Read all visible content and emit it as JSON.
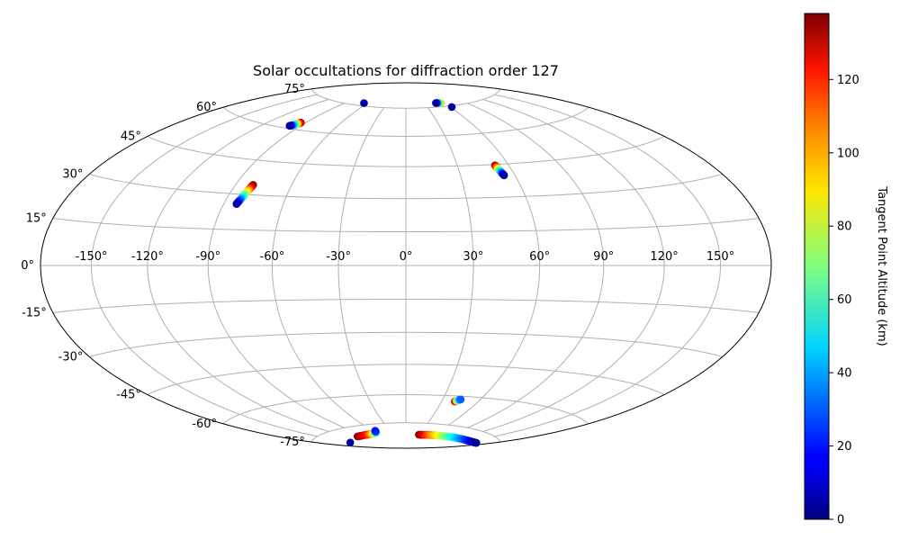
{
  "chart_data": {
    "type": "scatter",
    "projection": "hammer",
    "title": "Solar occultations for diffraction order 127",
    "colorbar": {
      "label": "Tangent Point Altitude (km)",
      "colormap": "jet",
      "range": [
        0,
        138
      ],
      "ticks": [
        "0",
        "20",
        "40",
        "60",
        "80",
        "100",
        "120"
      ]
    },
    "lon_ticks": [
      "-150°",
      "-120°",
      "-90°",
      "-60°",
      "-30°",
      "0°",
      "30°",
      "60°",
      "90°",
      "120°",
      "150°"
    ],
    "lat_ticks": [
      "-75°",
      "-60°",
      "-45°",
      "-30°",
      "-15°",
      "0°",
      "15°",
      "30°",
      "45°",
      "60°",
      "75°"
    ],
    "grid": true,
    "tracks": [
      {
        "lon": [
          -83.5,
          -83.0,
          -82.5,
          -82.0,
          -81.6,
          -81.2,
          -80.8,
          -80.5
        ],
        "lat": [
          25.8,
          27.0,
          28.3,
          29.5,
          30.8,
          32.0,
          33.2,
          34.3
        ],
        "alt": [
          5,
          25,
          45,
          65,
          85,
          105,
          125,
          138
        ]
      },
      {
        "lon": [
          -98.5,
          -97.5,
          -96.5,
          -95.6,
          -94.8,
          -94.0
        ],
        "lat": [
          61.2,
          61.6,
          62.1,
          62.5,
          62.9,
          63.3
        ],
        "alt": [
          5,
          30,
          60,
          90,
          118,
          138
        ]
      },
      {
        "lon": [
          52.0,
          52.4,
          52.8,
          53.2,
          53.6,
          54.0
        ],
        "lat": [
          44.6,
          43.6,
          42.6,
          41.6,
          40.6,
          39.8
        ],
        "alt": [
          138,
          110,
          80,
          50,
          25,
          5
        ]
      },
      {
        "lon": [
          41.0,
          42.0,
          43.0,
          44.5
        ],
        "lat": [
          -62.8,
          -62.4,
          -62.0,
          -61.6
        ],
        "alt": [
          138,
          100,
          60,
          30
        ]
      },
      {
        "lon": [
          30.0,
          40.0,
          50.0,
          60.0,
          70.0,
          80.0,
          90.0,
          100.0,
          110.0,
          120.0,
          130.0,
          140.0,
          150.0,
          160.0,
          165.0,
          168.0
        ],
        "lat": [
          -81.6,
          -81.5,
          -81.3,
          -81.2,
          -81.0,
          -80.9,
          -80.7,
          -80.5,
          -80.3,
          -80.1,
          -79.9,
          -79.7,
          -79.4,
          -79.1,
          -78.9,
          -78.7
        ],
        "alt": [
          138,
          125,
          112,
          100,
          90,
          80,
          70,
          60,
          50,
          42,
          34,
          26,
          18,
          10,
          5,
          2
        ]
      },
      {
        "lon": [
          -105,
          -95,
          -85,
          -75,
          -65,
          -58,
          -55
        ],
        "lat": [
          -79.9,
          -80.0,
          -80.0,
          -80.0,
          -79.9,
          -79.6,
          -78.6
        ],
        "alt": [
          138,
          130,
          122,
          110,
          85,
          50,
          20
        ]
      },
      {
        "lon": [
          -152
        ],
        "lat": [
          -80.8
        ],
        "alt": [
          5
        ]
      },
      {
        "lon": [
          -65
        ],
        "lat": [
          76.5
        ],
        "alt": [
          5
        ]
      },
      {
        "lon": [
          48,
          55
        ],
        "lat": [
          77.2,
          77.0
        ],
        "alt": [
          5,
          100
        ]
      },
      {
        "lon": [
          62
        ],
        "lat": [
          74.3
        ],
        "alt": [
          5
        ]
      }
    ]
  }
}
